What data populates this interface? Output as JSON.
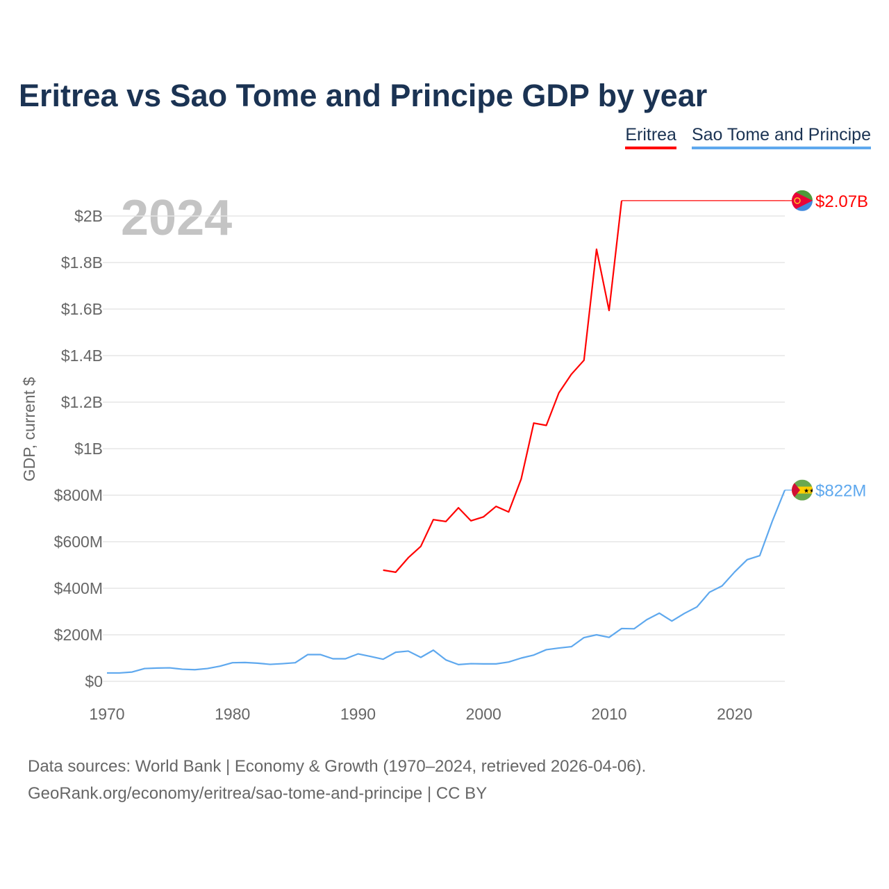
{
  "title": "Eritrea vs Sao Tome and Principe GDP by year",
  "legend": [
    "Eritrea",
    "Sao Tome and Principe"
  ],
  "year_label": "2024",
  "footer": {
    "line1": "Data sources: World Bank | Economy & Growth (1970–2024, retrieved 2026-04-06).",
    "line2": "GeoRank.org/economy/eritrea/sao-tome-and-principe | CC BY"
  },
  "chart_data": {
    "type": "line",
    "title": "Eritrea vs Sao Tome and Principe GDP by year",
    "xlabel": "",
    "ylabel": "GDP, current $",
    "xlim": [
      1970,
      2024
    ],
    "ylim": [
      0,
      2.1
    ],
    "x_ticks": [
      1970,
      1980,
      1990,
      2000,
      2010,
      2020
    ],
    "y_ticks": [
      0,
      0.2,
      0.4,
      0.6,
      0.8,
      1.0,
      1.2,
      1.4,
      1.6,
      1.8,
      2.0
    ],
    "y_tick_labels": [
      "$0",
      "$200M",
      "$400M",
      "$600M",
      "$800M",
      "$1B",
      "$1.2B",
      "$1.4B",
      "$1.6B",
      "$1.8B",
      "$2B"
    ],
    "units": "billions USD",
    "grid": true,
    "legend_position": "top-right",
    "series": [
      {
        "name": "Eritrea",
        "color": "#ff0000",
        "end_label": "$2.07B",
        "carry_forward_to": 2024,
        "x": [
          1992,
          1993,
          1994,
          1995,
          1996,
          1997,
          1998,
          1999,
          2000,
          2001,
          2002,
          2003,
          2004,
          2005,
          2006,
          2007,
          2008,
          2009,
          2010,
          2011
        ],
        "values": [
          0.478,
          0.469,
          0.531,
          0.58,
          0.695,
          0.687,
          0.746,
          0.69,
          0.707,
          0.752,
          0.728,
          0.87,
          1.11,
          1.1,
          1.24,
          1.32,
          1.38,
          1.857,
          1.594,
          2.066
        ]
      },
      {
        "name": "Sao Tome and Principe",
        "color": "#5ea8ee",
        "end_label": "$822M",
        "x": [
          1970,
          1971,
          1972,
          1973,
          1974,
          1975,
          1976,
          1977,
          1978,
          1979,
          1980,
          1981,
          1982,
          1983,
          1984,
          1985,
          1986,
          1987,
          1988,
          1989,
          1990,
          1991,
          1992,
          1993,
          1994,
          1995,
          1996,
          1997,
          1998,
          1999,
          2000,
          2001,
          2002,
          2003,
          2004,
          2005,
          2006,
          2007,
          2008,
          2009,
          2010,
          2011,
          2012,
          2013,
          2014,
          2015,
          2016,
          2017,
          2018,
          2019,
          2020,
          2021,
          2022,
          2023,
          2024
        ],
        "values": [
          0.036,
          0.036,
          0.04,
          0.055,
          0.057,
          0.058,
          0.052,
          0.05,
          0.055,
          0.065,
          0.08,
          0.081,
          0.078,
          0.073,
          0.076,
          0.08,
          0.115,
          0.115,
          0.097,
          0.097,
          0.118,
          0.107,
          0.095,
          0.125,
          0.13,
          0.103,
          0.134,
          0.092,
          0.072,
          0.076,
          0.075,
          0.075,
          0.083,
          0.1,
          0.113,
          0.136,
          0.143,
          0.149,
          0.188,
          0.2,
          0.189,
          0.227,
          0.226,
          0.265,
          0.293,
          0.259,
          0.292,
          0.32,
          0.383,
          0.41,
          0.47,
          0.523,
          0.54,
          0.688,
          0.822
        ]
      }
    ]
  }
}
